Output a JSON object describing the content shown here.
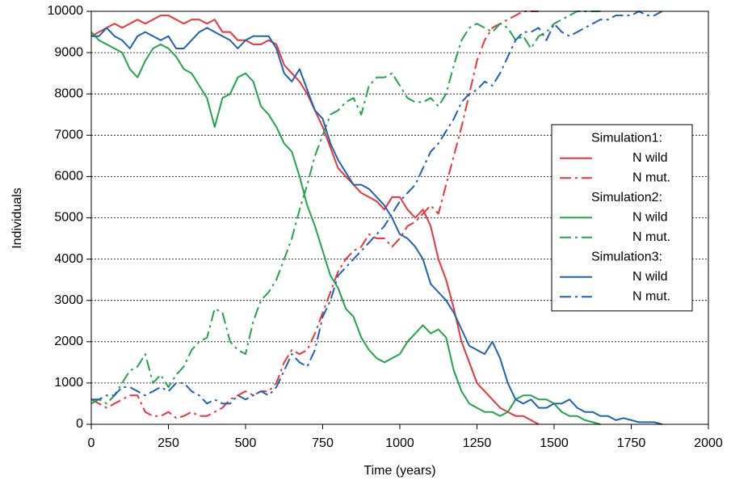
{
  "chart_data": {
    "type": "line",
    "xlabel": "Time (years)",
    "ylabel": "Individuals",
    "xlim": [
      0,
      2000
    ],
    "ylim": [
      0,
      10000
    ],
    "xticks": [
      0,
      250,
      500,
      750,
      1000,
      1250,
      1500,
      1750,
      2000
    ],
    "yticks": [
      0,
      1000,
      2000,
      3000,
      4000,
      5000,
      6000,
      7000,
      8000,
      9000,
      10000
    ],
    "grid": true,
    "legend": "right",
    "x": [
      0,
      25,
      50,
      75,
      100,
      125,
      150,
      175,
      200,
      225,
      250,
      275,
      300,
      325,
      350,
      375,
      400,
      425,
      450,
      475,
      500,
      525,
      550,
      575,
      600,
      625,
      650,
      675,
      700,
      725,
      750,
      775,
      800,
      825,
      850,
      875,
      900,
      925,
      950,
      975,
      1000,
      1025,
      1050,
      1075,
      1100,
      1125,
      1150,
      1175,
      1200,
      1225,
      1250,
      1275,
      1300,
      1325,
      1350,
      1375,
      1400,
      1425,
      1450,
      1475,
      1500,
      1525,
      1550,
      1575,
      1600,
      1625,
      1650,
      1675,
      1700,
      1725,
      1750,
      1775,
      1800,
      1825,
      1850
    ],
    "series": [
      {
        "group": "Simulation1:",
        "name": "N wild",
        "color": "#e8343a",
        "linestyle": "solid",
        "values": [
          9400,
          9500,
          9600,
          9700,
          9600,
          9700,
          9800,
          9700,
          9800,
          9900,
          9900,
          9800,
          9700,
          9800,
          9800,
          9700,
          9800,
          9500,
          9500,
          9300,
          9300,
          9200,
          9200,
          9300,
          9200,
          8700,
          8500,
          8300,
          8000,
          7600,
          7200,
          6700,
          6200,
          6000,
          5800,
          5600,
          5500,
          5400,
          5200,
          5500,
          5500,
          5200,
          5000,
          5200,
          4800,
          4000,
          3500,
          2800,
          2000,
          1500,
          1000,
          800,
          600,
          400,
          300,
          200,
          200,
          100,
          0,
          null,
          null,
          null,
          null,
          null,
          null,
          null,
          null,
          null,
          null,
          null,
          null,
          null,
          null,
          null,
          null
        ]
      },
      {
        "group": "Simulation1:",
        "name": "N mut.",
        "color": "#e8343a",
        "linestyle": "dashdot",
        "values": [
          600,
          500,
          400,
          500,
          600,
          700,
          700,
          300,
          200,
          200,
          300,
          150,
          200,
          300,
          200,
          200,
          300,
          400,
          600,
          700,
          800,
          700,
          800,
          800,
          1000,
          1500,
          1800,
          1700,
          1800,
          2200,
          2700,
          3200,
          3700,
          4000,
          4200,
          4300,
          4600,
          4500,
          4500,
          4300,
          4500,
          4800,
          4900,
          5100,
          5300,
          5100,
          5800,
          6500,
          7200,
          8000,
          8800,
          9300,
          9600,
          9700,
          9800,
          9900,
          10000,
          10000,
          10000,
          null,
          null,
          null,
          null,
          null,
          null,
          null,
          null,
          null,
          null,
          null,
          null,
          null,
          null,
          null,
          null
        ]
      },
      {
        "group": "Simulation2:",
        "name": "N wild",
        "color": "#1fa44a",
        "linestyle": "solid",
        "values": [
          9500,
          9300,
          9200,
          9100,
          9000,
          8600,
          8400,
          8800,
          9100,
          9200,
          9100,
          8900,
          8600,
          8500,
          8200,
          7900,
          7200,
          7900,
          8000,
          8400,
          8500,
          8300,
          7700,
          7500,
          7200,
          6800,
          6600,
          6000,
          5300,
          4800,
          4200,
          3600,
          3300,
          2800,
          2600,
          2100,
          1800,
          1600,
          1500,
          1600,
          1700,
          2000,
          2200,
          2400,
          2200,
          2300,
          2100,
          1300,
          800,
          500,
          400,
          300,
          300,
          200,
          300,
          600,
          700,
          700,
          600,
          600,
          500,
          300,
          200,
          200,
          100,
          50,
          0,
          null,
          null,
          null,
          null,
          null,
          null,
          null,
          null
        ]
      },
      {
        "group": "Simulation2:",
        "name": "N mut.",
        "color": "#1fa44a",
        "linestyle": "dashdot",
        "values": [
          500,
          600,
          500,
          700,
          1000,
          1300,
          1400,
          1700,
          1000,
          1200,
          900,
          1200,
          1400,
          1800,
          2000,
          2100,
          2800,
          2700,
          2000,
          1800,
          1700,
          2500,
          3000,
          3200,
          3500,
          4000,
          4500,
          5200,
          5800,
          6500,
          7000,
          7500,
          7600,
          7800,
          7900,
          7500,
          8200,
          8400,
          8400,
          8500,
          8200,
          7900,
          7800,
          7800,
          7900,
          7700,
          8000,
          8700,
          9300,
          9600,
          9700,
          9600,
          9500,
          9700,
          9600,
          9300,
          9400,
          9100,
          9400,
          9500,
          9700,
          9800,
          9900,
          10000,
          10000,
          10000,
          10000,
          null,
          null,
          null,
          null,
          null,
          null,
          null,
          null
        ]
      },
      {
        "group": "Simulation3:",
        "name": "N wild",
        "color": "#1a63b5",
        "linestyle": "solid",
        "values": [
          9400,
          9400,
          9600,
          9400,
          9300,
          9100,
          9400,
          9500,
          9400,
          9300,
          9400,
          9100,
          9100,
          9300,
          9500,
          9600,
          9500,
          9400,
          9300,
          9100,
          9300,
          9400,
          9400,
          9400,
          9100,
          8500,
          8300,
          8600,
          8100,
          7600,
          7400,
          6800,
          6400,
          6100,
          5800,
          5800,
          5700,
          5500,
          5300,
          5000,
          4600,
          4500,
          4300,
          4000,
          3400,
          3200,
          3000,
          2700,
          2300,
          1900,
          1800,
          1700,
          2000,
          1600,
          1000,
          600,
          500,
          600,
          400,
          400,
          500,
          500,
          600,
          400,
          300,
          300,
          200,
          200,
          100,
          150,
          100,
          50,
          50,
          50,
          0
        ]
      },
      {
        "group": "Simulation3:",
        "name": "N mut.",
        "color": "#1a63b5",
        "linestyle": "dashdot",
        "values": [
          600,
          600,
          700,
          700,
          900,
          900,
          800,
          700,
          800,
          900,
          800,
          1000,
          1000,
          800,
          700,
          500,
          600,
          500,
          500,
          700,
          600,
          700,
          800,
          700,
          900,
          1300,
          1700,
          1500,
          1400,
          1800,
          2600,
          3000,
          3600,
          3800,
          4000,
          4200,
          4400,
          4600,
          4800,
          5100,
          5400,
          5600,
          5800,
          6200,
          6600,
          6800,
          7100,
          7400,
          7800,
          8000,
          8100,
          8300,
          8200,
          8500,
          8900,
          9300,
          9500,
          9500,
          9600,
          9300,
          9700,
          9500,
          9400,
          9500,
          9600,
          9700,
          9800,
          9800,
          9900,
          9900,
          9900,
          10000,
          9900,
          9900,
          10000
        ]
      }
    ]
  }
}
